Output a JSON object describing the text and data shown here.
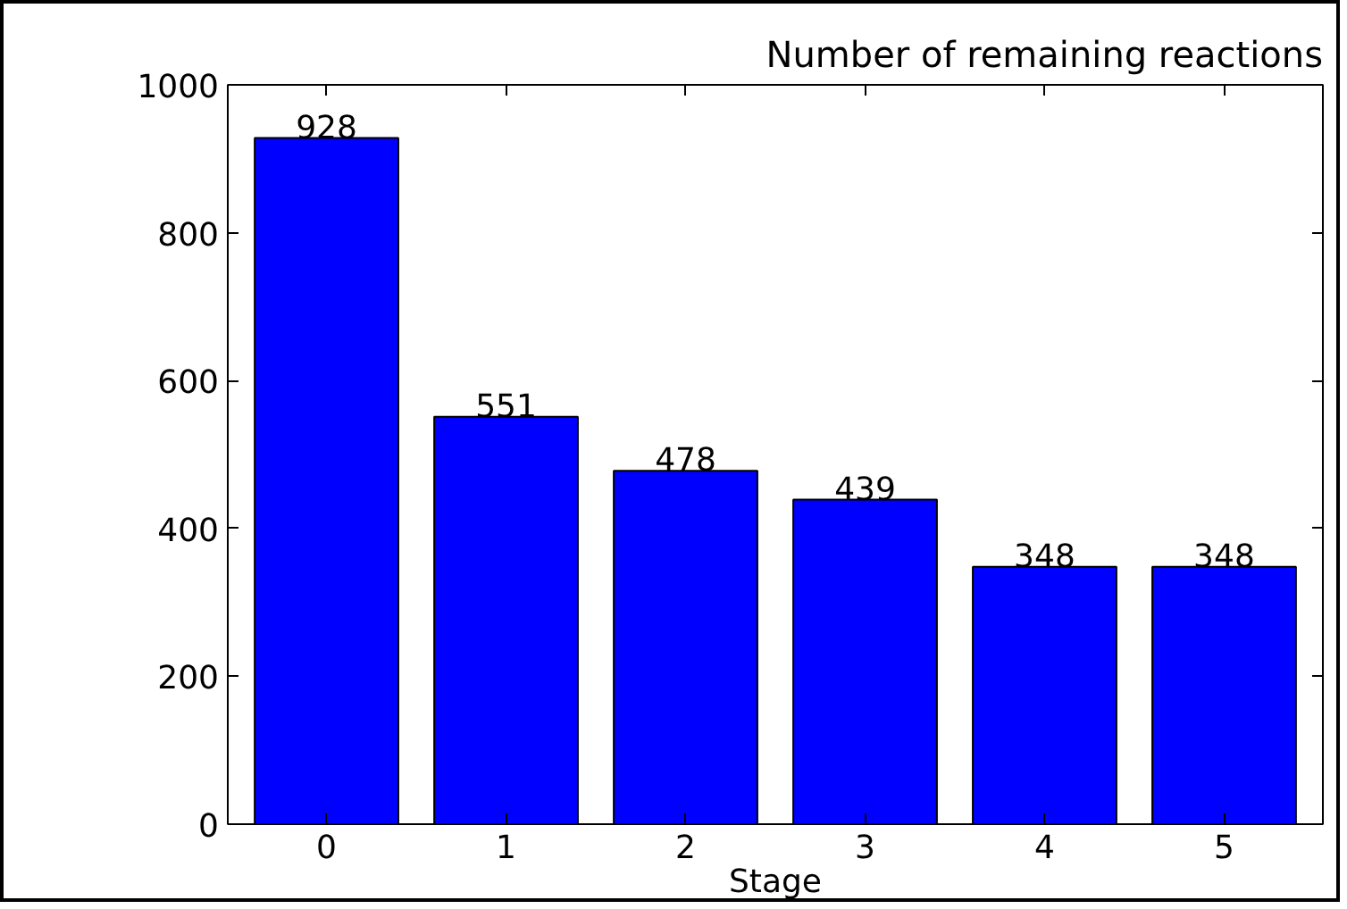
{
  "chart_data": {
    "type": "bar",
    "title": "Number of remaining reactions",
    "xlabel": "Stage",
    "categories": [
      "0",
      "1",
      "2",
      "3",
      "4",
      "5"
    ],
    "values": [
      928,
      551,
      478,
      439,
      348,
      348
    ],
    "color": "#0000ff",
    "ylim": [
      0,
      1000
    ],
    "yticks": [
      0,
      200,
      400,
      600,
      800,
      1000
    ],
    "data_labels": true,
    "grid": false
  }
}
